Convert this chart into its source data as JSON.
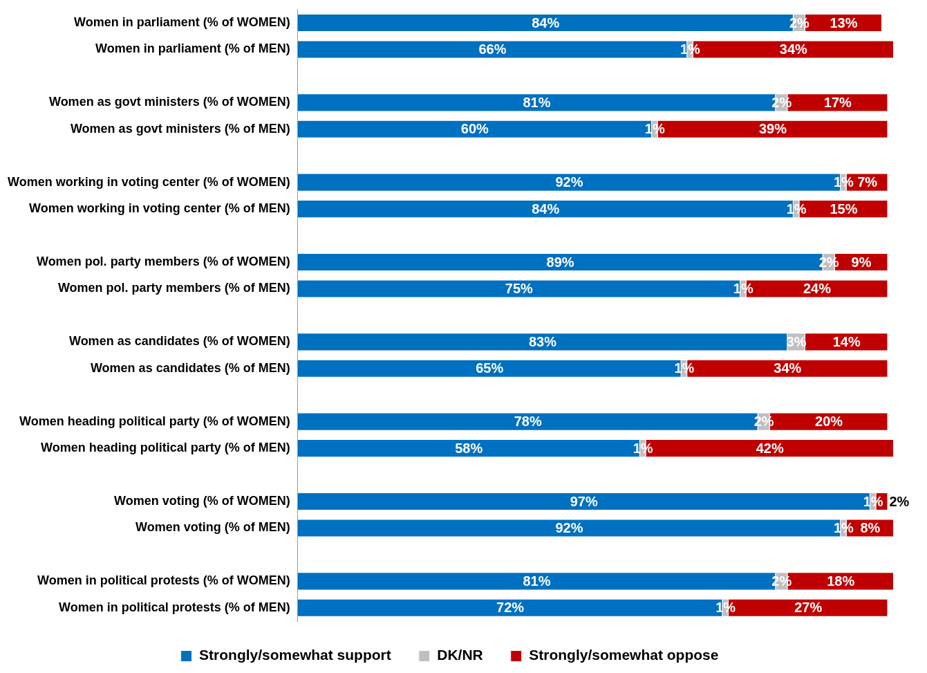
{
  "chart_data": {
    "type": "bar",
    "orientation": "horizontal",
    "stacked": true,
    "legend": "bottom",
    "grid": false,
    "tick_labels": "y",
    "data_labels": true,
    "categories": [
      "Women in parliament (% of WOMEN)",
      "Women in parliament (% of MEN)",
      null,
      "Women as govt ministers (% of WOMEN)",
      "Women as govt ministers (% of MEN)",
      null,
      "Women working in voting center (% of WOMEN)",
      "Women working in voting center (% of MEN)",
      null,
      "Women pol. party members (% of WOMEN)",
      "Women pol. party members (% of MEN)",
      null,
      "Women as candidates (% of WOMEN)",
      "Women as candidates (% of MEN)",
      null,
      "Women heading political party (% of WOMEN)",
      "Women heading political party (% of MEN)",
      null,
      "Women voting (% of WOMEN)",
      "Women voting (% of MEN)",
      null,
      "Women in political protests (% of WOMEN)",
      "Women in political protests (% of MEN)"
    ],
    "series": [
      {
        "name": "Strongly/somewhat support",
        "color": "#0070c0",
        "values": [
          84,
          66,
          null,
          81,
          60,
          null,
          92,
          84,
          null,
          89,
          75,
          null,
          83,
          65,
          null,
          78,
          58,
          null,
          97,
          92,
          null,
          81,
          72
        ],
        "value_labels": [
          "84%",
          "66%",
          null,
          "81%",
          "60%",
          null,
          "92%",
          "84%",
          null,
          "89%",
          "75%",
          null,
          "83%",
          "65%",
          null,
          "78%",
          "58%",
          null,
          "97%",
          "92%",
          null,
          "81%",
          "72%"
        ]
      },
      {
        "name": "DK/NR",
        "color": "#bfbfbf",
        "values": [
          2,
          1,
          null,
          2,
          1,
          null,
          1,
          1,
          null,
          2,
          1,
          null,
          3,
          1,
          null,
          2,
          1,
          null,
          1,
          1,
          null,
          2,
          1
        ],
        "value_labels": [
          "2%",
          "1%",
          null,
          "2%",
          "1%",
          null,
          "1%",
          "1%",
          null,
          "2%",
          "1%",
          null,
          "3%",
          "1%",
          null,
          "2%",
          "1%",
          null,
          "1%",
          "1%",
          null,
          "2%",
          "1%"
        ]
      },
      {
        "name": "Strongly/somewhat oppose",
        "color": "#c00000",
        "values": [
          13,
          34,
          null,
          17,
          39,
          null,
          7,
          15,
          null,
          9,
          24,
          null,
          14,
          34,
          null,
          20,
          42,
          null,
          2,
          8,
          null,
          18,
          27
        ],
        "value_labels": [
          "13%",
          "34%",
          null,
          "17%",
          "39%",
          null,
          "7%",
          "15%",
          null,
          "9%",
          "24%",
          null,
          "14%",
          "34%",
          null,
          "20%",
          "42%",
          null,
          "2%",
          "8%",
          null,
          "18%",
          "27%"
        ]
      }
    ]
  }
}
